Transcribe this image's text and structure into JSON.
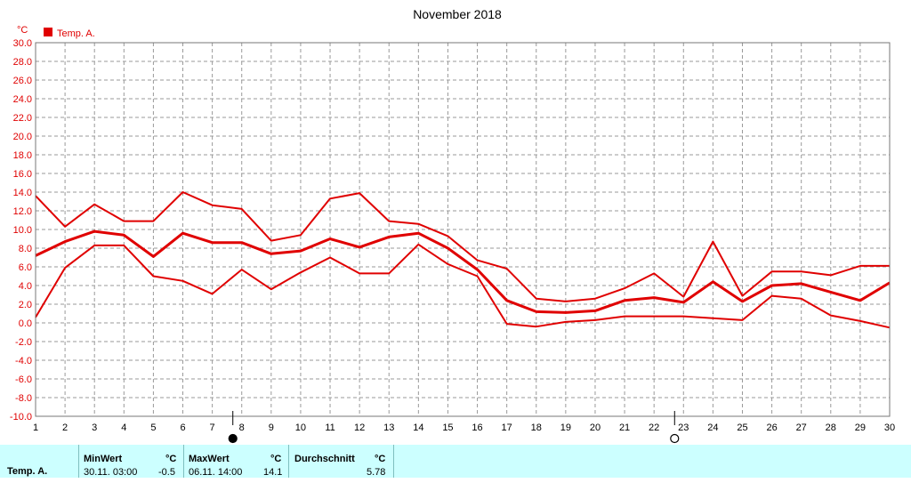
{
  "colors": {
    "series": "#e00000",
    "axis_text": "#e00000",
    "grid": "#999999",
    "panel_bg": "#ccffff"
  },
  "chart_data": {
    "type": "line",
    "title": "November 2018",
    "y_unit": "°C",
    "legend": {
      "label": "Temp. A.",
      "position": "top-left"
    },
    "ylim": [
      -10,
      30
    ],
    "yticks": [
      "30.0",
      "28.0",
      "26.0",
      "24.0",
      "22.0",
      "20.0",
      "18.0",
      "16.0",
      "14.0",
      "12.0",
      "10.0",
      "8.0",
      "6.0",
      "4.0",
      "2.0",
      "0.0",
      "-2.0",
      "-4.0",
      "-6.0",
      "-8.0",
      "-10.0"
    ],
    "x": [
      1,
      2,
      3,
      4,
      5,
      6,
      7,
      8,
      9,
      10,
      11,
      12,
      13,
      14,
      15,
      16,
      17,
      18,
      19,
      20,
      21,
      22,
      23,
      24,
      25,
      26,
      27,
      28,
      29,
      30
    ],
    "grid": true,
    "moon_markers": [
      {
        "day": 8,
        "phase": "new-moon"
      },
      {
        "day": 23,
        "phase": "full-moon"
      }
    ],
    "series": [
      {
        "role": "max",
        "values": [
          13.6,
          10.3,
          12.7,
          10.9,
          10.9,
          14.0,
          12.6,
          12.2,
          8.8,
          9.4,
          13.3,
          13.9,
          10.9,
          10.6,
          9.3,
          6.7,
          5.8,
          2.6,
          2.3,
          2.6,
          3.7,
          5.3,
          2.8,
          8.7,
          2.9,
          5.5,
          5.5,
          5.1,
          6.1,
          6.1
        ]
      },
      {
        "role": "mean",
        "values": [
          7.2,
          8.7,
          9.8,
          9.4,
          7.1,
          9.6,
          8.6,
          8.6,
          7.4,
          7.7,
          9.0,
          8.1,
          9.2,
          9.6,
          8.0,
          5.7,
          2.4,
          1.2,
          1.1,
          1.3,
          2.4,
          2.7,
          2.2,
          4.4,
          2.3,
          4.0,
          4.2,
          3.3,
          2.4,
          4.3
        ]
      },
      {
        "role": "min",
        "values": [
          0.6,
          5.9,
          8.3,
          8.3,
          5.0,
          4.5,
          3.1,
          5.7,
          3.6,
          5.4,
          7.0,
          5.3,
          5.3,
          8.4,
          6.3,
          5.0,
          -0.1,
          -0.4,
          0.1,
          0.3,
          0.7,
          0.7,
          0.7,
          0.5,
          0.3,
          2.9,
          2.6,
          0.8,
          0.2,
          -0.5
        ]
      }
    ]
  },
  "stats": {
    "row_label": "Temp. A.",
    "min": {
      "header": "MinWert",
      "unit": "°C",
      "when": "30.11.  03:00",
      "value": "-0.5"
    },
    "max": {
      "header": "MaxWert",
      "unit": "°C",
      "when": "06.11.  14:00",
      "value": "14.1"
    },
    "avg": {
      "header": "Durchschnitt",
      "unit": "°C",
      "value": "5.78"
    }
  }
}
